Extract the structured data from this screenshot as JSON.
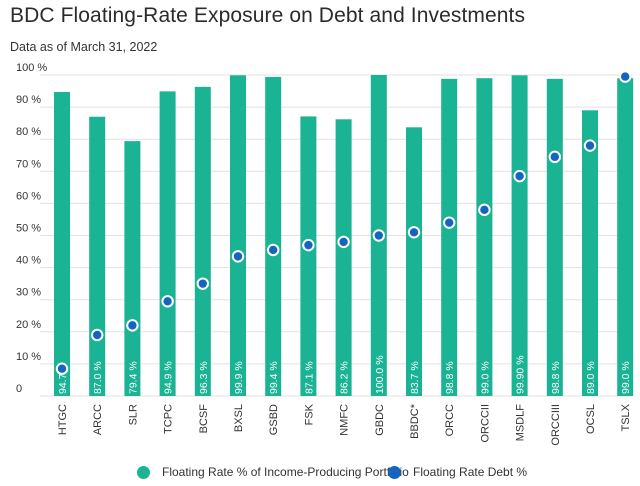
{
  "chart_data": {
    "type": "bar",
    "title": "BDC Floating-Rate Exposure on Debt and Investments",
    "subtitle": "Data as of March 31, 2022",
    "categories": [
      "HTGC",
      "ARCC",
      "SLR",
      "TCPC",
      "BCSF",
      "BXSL",
      "GSBD",
      "FSK",
      "NMFC",
      "GBDC",
      "BBDC*",
      "ORCC",
      "ORCCII",
      "MSDLF",
      "ORCCIII",
      "OCSL",
      "TSLX"
    ],
    "series": [
      {
        "name": "Floating Rate % of Income-Producing Portfolio",
        "type": "bar",
        "color": "#1ab394",
        "values": [
          94.7,
          87.0,
          79.4,
          94.9,
          96.3,
          99.9,
          99.4,
          87.1,
          86.2,
          100.0,
          83.7,
          98.8,
          99.0,
          99.9,
          98.8,
          89.0,
          99.0
        ],
        "labels": [
          "94.7",
          "87.0 %",
          "79.4 %",
          "94.9 %",
          "96.3 %",
          "99.9 %",
          "99.4 %",
          "87.1 %",
          "86.2 %",
          "100.0 %",
          "83.7 %",
          "98.8 %",
          "99.0 %",
          "99.90 %",
          "98.8 %",
          "89.0 %",
          "99.0 %"
        ]
      },
      {
        "name": "Floating Rate Debt %",
        "type": "scatter",
        "color": "#1565c0",
        "values": [
          8.5,
          19,
          22,
          29.5,
          35,
          43.5,
          45.5,
          47,
          48,
          50,
          51,
          54,
          58,
          68.5,
          74.5,
          78,
          99.5
        ]
      }
    ],
    "y_ticks": [
      0,
      10,
      20,
      30,
      40,
      50,
      60,
      70,
      80,
      90,
      100
    ],
    "y_tick_labels": [
      "0",
      "10 %",
      "20 %",
      "30 %",
      "40 %",
      "50 %",
      "60 %",
      "70 %",
      "80 %",
      "90 %",
      "100 %"
    ],
    "ylim": [
      0,
      100
    ],
    "grid": true,
    "legend_position": "bottom"
  }
}
